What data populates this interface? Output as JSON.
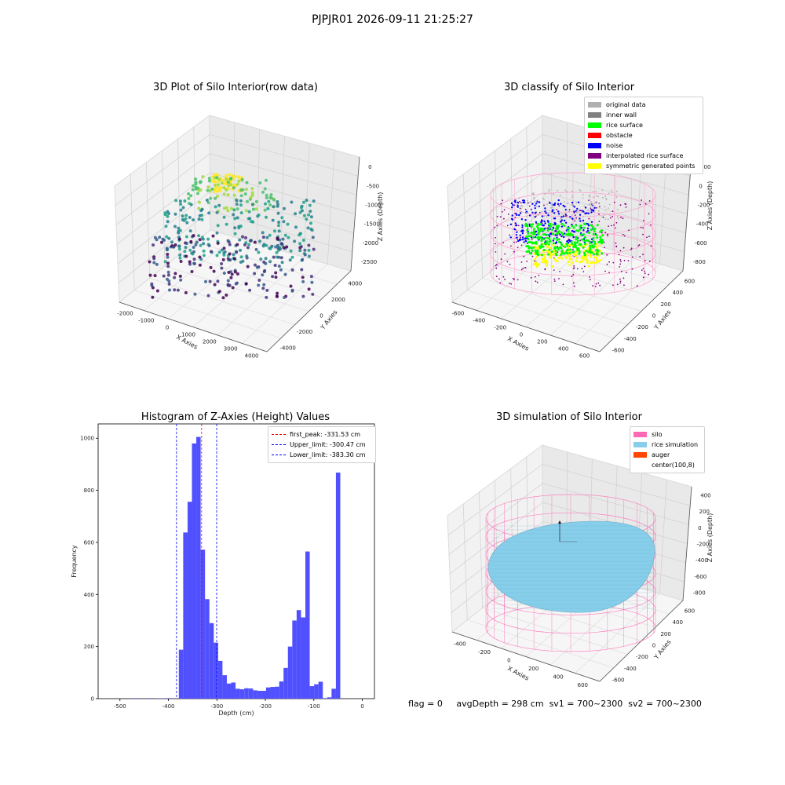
{
  "suptitle": "PJPJR01 2026-09-11 21:25:27",
  "footer": {
    "flag": "flag = 0",
    "avg_depth": "avgDepth = 298 cm",
    "sv1": "sv1 = 700~2300",
    "sv2": "sv2 = 700~2300"
  },
  "chart_data": [
    {
      "type": "scatter",
      "title": "3D Plot of Silo Interior(row data)",
      "xlabel": "X Axies",
      "ylabel": "Y Axies",
      "zlabel": "Z Axies (Depth)",
      "xticks": [
        "-2000",
        "-1000",
        "0",
        "1000",
        "2000",
        "3000",
        "4000"
      ],
      "yticks": [
        "-4000",
        "-2000",
        "0",
        "2000",
        "4000"
      ],
      "zticks": [
        "0",
        "-500",
        "-1000",
        "-1500",
        "-2000",
        "-2500"
      ],
      "xlim": [
        -2500,
        4500
      ],
      "ylim": [
        -4500,
        4500
      ],
      "zlim": [
        -2700,
        0
      ],
      "colormap": "viridis"
    },
    {
      "type": "scatter",
      "title": "3D classify of Silo Interior",
      "xlabel": "X Axies",
      "ylabel": "Y Axies",
      "zlabel": "Z Axies (Depth)",
      "xticks": [
        "-600",
        "-400",
        "-200",
        "0",
        "200",
        "400",
        "600"
      ],
      "yticks": [
        "-600",
        "-400",
        "-200",
        "0",
        "200",
        "400",
        "600"
      ],
      "zticks": [
        "200",
        "0",
        "-200",
        "-400",
        "-600",
        "-800"
      ],
      "legend": [
        {
          "label": "original data",
          "color": "#b0b0b0"
        },
        {
          "label": "inner wall",
          "color": "#808080"
        },
        {
          "label": "rice surface",
          "color": "#00ff00"
        },
        {
          "label": "obstacle",
          "color": "#ff0000"
        },
        {
          "label": "noise",
          "color": "#0000ff"
        },
        {
          "label": "interpolated rice surface",
          "color": "#800080"
        },
        {
          "label": "symmetric generated points",
          "color": "#ffff00"
        }
      ],
      "wire_color": "#ff9ecd"
    },
    {
      "type": "bar",
      "title": "Histogram of Z-Axies (Height) Values",
      "xlabel": "Depth (cm)",
      "ylabel": "Frequency",
      "xlim": [
        -545,
        25
      ],
      "ylim": [
        0,
        1055
      ],
      "xticks": [
        "-500",
        "-400",
        "-300",
        "-200",
        "-100",
        "0"
      ],
      "yticks": [
        "0",
        "200",
        "400",
        "600",
        "800",
        "1000"
      ],
      "bin_width": 9.0,
      "bar_color": "#5050ff",
      "bins": [
        {
          "x": -470,
          "y": 2
        },
        {
          "x": -440,
          "y": 2
        },
        {
          "x": -420,
          "y": 1
        },
        {
          "x": -410,
          "y": 1
        },
        {
          "x": -397,
          "y": 2
        },
        {
          "x": -374,
          "y": 188
        },
        {
          "x": -365,
          "y": 638
        },
        {
          "x": -356,
          "y": 756
        },
        {
          "x": -347,
          "y": 980
        },
        {
          "x": -338,
          "y": 1005
        },
        {
          "x": -329,
          "y": 572
        },
        {
          "x": -320,
          "y": 382
        },
        {
          "x": -311,
          "y": 290
        },
        {
          "x": -302,
          "y": 215
        },
        {
          "x": -293,
          "y": 145
        },
        {
          "x": -284,
          "y": 90
        },
        {
          "x": -275,
          "y": 58
        },
        {
          "x": -266,
          "y": 62
        },
        {
          "x": -257,
          "y": 38
        },
        {
          "x": -248,
          "y": 36
        },
        {
          "x": -239,
          "y": 40
        },
        {
          "x": -230,
          "y": 39
        },
        {
          "x": -221,
          "y": 32
        },
        {
          "x": -212,
          "y": 30
        },
        {
          "x": -203,
          "y": 30
        },
        {
          "x": -194,
          "y": 43
        },
        {
          "x": -185,
          "y": 45
        },
        {
          "x": -176,
          "y": 46
        },
        {
          "x": -167,
          "y": 66
        },
        {
          "x": -158,
          "y": 118
        },
        {
          "x": -149,
          "y": 200
        },
        {
          "x": -140,
          "y": 300
        },
        {
          "x": -131,
          "y": 340
        },
        {
          "x": -122,
          "y": 312
        },
        {
          "x": -113,
          "y": 565
        },
        {
          "x": -104,
          "y": 48
        },
        {
          "x": -95,
          "y": 55
        },
        {
          "x": -86,
          "y": 65
        },
        {
          "x": -77,
          "y": 2
        },
        {
          "x": -68,
          "y": 5
        },
        {
          "x": -59,
          "y": 38
        },
        {
          "x": -50,
          "y": 868
        }
      ],
      "vlines": [
        {
          "label": "first_peak: -331.53 cm",
          "x": -331.53,
          "color": "#ff0000"
        },
        {
          "label": "Upper_limit: -300.47 cm",
          "x": -300.47,
          "color": "#0000ff"
        },
        {
          "label": "Lower_limit: -383.30 cm",
          "x": -383.3,
          "color": "#0000ff"
        }
      ]
    },
    {
      "type": "scatter",
      "title": "3D simulation of Silo Interior",
      "xlabel": "X Axies",
      "ylabel": "Y Axies",
      "zlabel": "Z Axies (Depth)",
      "xticks": [
        "-400",
        "-200",
        "0",
        "200",
        "400",
        "600"
      ],
      "yticks": [
        "-600",
        "-400",
        "-200",
        "0",
        "200",
        "400",
        "600"
      ],
      "zticks": [
        "400",
        "200",
        "0",
        "-200",
        "-400",
        "-600",
        "-800"
      ],
      "legend": [
        {
          "label": "silo",
          "color": "#ff69b4"
        },
        {
          "label": "rice simulation",
          "color": "#87ceeb"
        },
        {
          "label": "auger",
          "color": "#ff4500"
        },
        {
          "label": "center(100,8)",
          "color": "#ffffff"
        }
      ]
    }
  ]
}
